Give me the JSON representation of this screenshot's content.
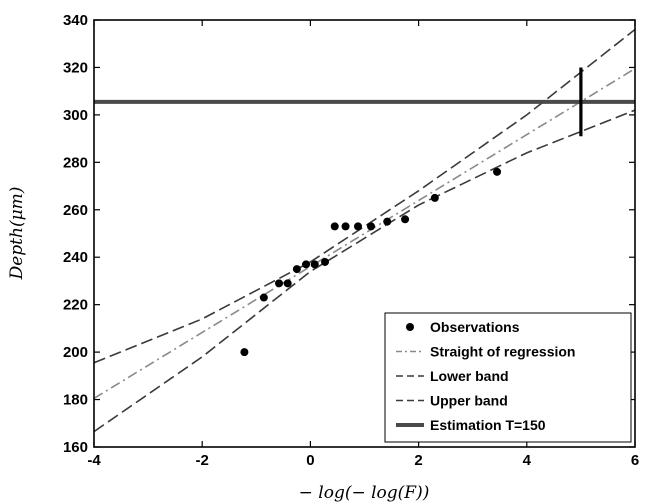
{
  "chart_data": {
    "type": "scatter",
    "xlabel": "− log(− log(F))",
    "ylabel": "Depth(μm)",
    "xlim": [
      -4,
      6
    ],
    "ylim": [
      160,
      340
    ],
    "x_ticks": [
      -4,
      -2,
      0,
      2,
      4,
      6
    ],
    "y_ticks": [
      160,
      180,
      200,
      220,
      240,
      260,
      280,
      300,
      320,
      340
    ],
    "x_tick_labels": [
      "-4",
      "-2",
      "0",
      "2",
      "4",
      "6"
    ],
    "y_tick_labels": [
      "160",
      "180",
      "200",
      "220",
      "240",
      "260",
      "280",
      "300",
      "320",
      "340"
    ],
    "grid": false,
    "legend_position": "bottom-right",
    "series": [
      {
        "name": "Observations",
        "kind": "scatter",
        "color": "#000000",
        "points": [
          [
            -1.22,
            200
          ],
          [
            -0.86,
            223
          ],
          [
            -0.58,
            229
          ],
          [
            -0.42,
            229
          ],
          [
            -0.25,
            235
          ],
          [
            -0.08,
            237
          ],
          [
            0.08,
            237
          ],
          [
            0.27,
            238
          ],
          [
            0.45,
            253
          ],
          [
            0.65,
            253
          ],
          [
            0.88,
            253
          ],
          [
            1.12,
            253
          ],
          [
            1.42,
            255
          ],
          [
            1.75,
            256
          ],
          [
            2.3,
            265
          ],
          [
            3.45,
            276
          ]
        ]
      },
      {
        "name": "Straight of regression",
        "kind": "line",
        "style": "dashdot",
        "color": "#8a8a8a",
        "points": [
          [
            -4,
            180.5
          ],
          [
            6,
            319.5
          ]
        ]
      },
      {
        "name": "Lower band",
        "kind": "line",
        "style": "dashed",
        "color": "#3a3a3a",
        "points": [
          [
            -4,
            166.5
          ],
          [
            -2,
            198
          ],
          [
            0,
            234
          ],
          [
            2,
            262
          ],
          [
            4,
            284
          ],
          [
            6,
            302
          ]
        ]
      },
      {
        "name": "Upper band",
        "kind": "line",
        "style": "dashed",
        "color": "#3a3a3a",
        "points": [
          [
            -4,
            195.5
          ],
          [
            -2,
            214
          ],
          [
            0,
            238
          ],
          [
            2,
            268
          ],
          [
            4,
            300
          ],
          [
            6,
            336
          ]
        ]
      },
      {
        "name": "Estimation T=150",
        "kind": "hline",
        "color": "#4a4a4a",
        "y": 305.5
      }
    ],
    "annotations": [
      {
        "kind": "vertical-interval",
        "x": 5,
        "y_range": [
          291,
          320
        ],
        "color": "#000000"
      }
    ]
  }
}
